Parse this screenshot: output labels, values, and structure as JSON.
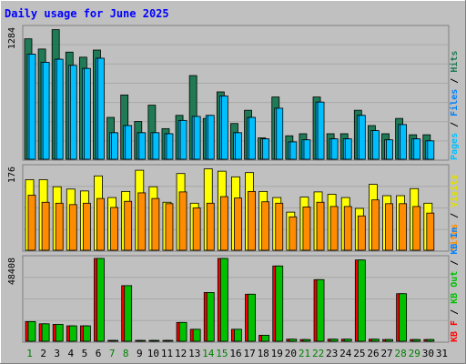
{
  "title": "Daily usage for June 2025",
  "colors": {
    "frame_bg": "#c0c0c0",
    "border_light": "#ffffff",
    "border_dark": "#808080",
    "hits": "#1f7a55",
    "files": "#00bfff",
    "pages": "#00bfff",
    "visits": "#ffff00",
    "sites": "#ff8c00",
    "kb_in": "#00c000",
    "kb_out": "#ff0000",
    "weekend_day": "#008000",
    "weekday": "#000000",
    "title_color": "#0000ff"
  },
  "right_labels": {
    "panel1": [
      {
        "text": "Pages",
        "color": "#00bfff"
      },
      {
        "text": " / ",
        "color": "#000000"
      },
      {
        "text": "Files",
        "color": "#0080ff"
      },
      {
        "text": " / ",
        "color": "#000000"
      },
      {
        "text": "Hits",
        "color": "#1f7a55"
      }
    ],
    "panel2": [
      {
        "text": "Sites",
        "color": "#ff8c00"
      },
      {
        "text": " / ",
        "color": "#000000"
      },
      {
        "text": "Visits",
        "color": "#e0e000"
      }
    ],
    "panel3": [
      {
        "text": "KB F",
        "color": "#ff0000"
      },
      {
        "text": " / ",
        "color": "#000000"
      },
      {
        "text": "KB Out",
        "color": "#00c000"
      },
      {
        "text": " / ",
        "color": "#000000"
      },
      {
        "text": "KB In",
        "color": "#0080ff"
      }
    ]
  },
  "chart_data": [
    {
      "type": "bar",
      "name": "hits-files-pages",
      "max_label": "1284",
      "ylim": [
        0,
        1284
      ],
      "categories": [
        "1",
        "2",
        "3",
        "4",
        "5",
        "6",
        "7",
        "8",
        "9",
        "10",
        "11",
        "12",
        "13",
        "14",
        "15",
        "16",
        "17",
        "18",
        "19",
        "20",
        "21",
        "22",
        "23",
        "24",
        "25",
        "26",
        "27",
        "28",
        "29",
        "30",
        "31"
      ],
      "series": [
        {
          "name": "Hits",
          "values": [
            1180,
            1080,
            1270,
            1050,
            1000,
            1070,
            410,
            630,
            370,
            530,
            300,
            430,
            820,
            400,
            660,
            350,
            480,
            210,
            610,
            230,
            250,
            610,
            250,
            250,
            480,
            330,
            250,
            400,
            240,
            240,
            null
          ]
        },
        {
          "name": "Files",
          "values": [
            1030,
            950,
            980,
            920,
            890,
            990,
            260,
            330,
            260,
            260,
            250,
            380,
            420,
            430,
            620,
            260,
            410,
            200,
            500,
            170,
            190,
            560,
            200,
            200,
            430,
            280,
            190,
            340,
            200,
            180,
            null
          ]
        },
        {
          "name": "Pages",
          "values": [
            1030,
            950,
            980,
            920,
            890,
            990,
            260,
            330,
            260,
            260,
            250,
            380,
            420,
            430,
            620,
            260,
            410,
            200,
            500,
            170,
            190,
            560,
            200,
            200,
            430,
            280,
            190,
            340,
            200,
            180,
            null
          ]
        }
      ]
    },
    {
      "type": "bar",
      "name": "visits-sites",
      "max_label": "176",
      "ylim": [
        0,
        176
      ],
      "categories": [
        "1",
        "2",
        "3",
        "4",
        "5",
        "6",
        "7",
        "8",
        "9",
        "10",
        "11",
        "12",
        "13",
        "14",
        "15",
        "16",
        "17",
        "18",
        "19",
        "20",
        "21",
        "22",
        "23",
        "24",
        "25",
        "26",
        "27",
        "28",
        "29",
        "30",
        "31"
      ],
      "series": [
        {
          "name": "Visits",
          "values": [
            150,
            150,
            135,
            130,
            126,
            158,
            112,
            125,
            170,
            135,
            102,
            163,
            100,
            173,
            168,
            156,
            165,
            125,
            112,
            81,
            113,
            124,
            119,
            112,
            89,
            140,
            116,
            116,
            131,
            100,
            null
          ]
        },
        {
          "name": "Sites",
          "values": [
            117,
            102,
            100,
            97,
            100,
            110,
            91,
            104,
            122,
            110,
            99,
            124,
            90,
            100,
            114,
            111,
            125,
            103,
            100,
            71,
            92,
            102,
            93,
            93,
            73,
            107,
            99,
            99,
            93,
            79,
            null
          ]
        }
      ]
    },
    {
      "type": "bar",
      "name": "kb-traffic",
      "max_label": "48408",
      "ylim": [
        0,
        48408
      ],
      "categories": [
        "1",
        "2",
        "3",
        "4",
        "5",
        "6",
        "7",
        "8",
        "9",
        "10",
        "11",
        "12",
        "13",
        "14",
        "15",
        "16",
        "17",
        "18",
        "19",
        "20",
        "21",
        "22",
        "23",
        "24",
        "25",
        "26",
        "27",
        "28",
        "29",
        "30",
        "31"
      ],
      "series": [
        {
          "name": "KB F",
          "values": [
            11500,
            10200,
            9900,
            9000,
            9000,
            49000,
            500,
            32500,
            500,
            500,
            500,
            11000,
            7000,
            28500,
            49000,
            7000,
            27500,
            3500,
            44000,
            1200,
            1000,
            36000,
            1200,
            1200,
            47500,
            1200,
            1000,
            27800,
            1000,
            1000,
            null
          ]
        },
        {
          "name": "KB Out",
          "values": [
            11500,
            10200,
            9900,
            9000,
            9000,
            49000,
            500,
            32500,
            500,
            500,
            500,
            11000,
            7000,
            28500,
            49000,
            7000,
            27500,
            3500,
            44000,
            1200,
            1000,
            36000,
            1200,
            1200,
            47500,
            1200,
            1000,
            27800,
            1000,
            1000,
            null
          ]
        },
        {
          "name": "KB In",
          "values": [
            0,
            0,
            0,
            0,
            0,
            0,
            0,
            0,
            0,
            0,
            0,
            0,
            0,
            0,
            0,
            0,
            0,
            0,
            0,
            0,
            0,
            0,
            0,
            0,
            0,
            0,
            0,
            0,
            0,
            0,
            null
          ]
        }
      ]
    }
  ],
  "day_labels": [
    {
      "text": "1",
      "weekend": true
    },
    {
      "text": "2",
      "weekend": false
    },
    {
      "text": "3",
      "weekend": false
    },
    {
      "text": "4",
      "weekend": false
    },
    {
      "text": "5",
      "weekend": false
    },
    {
      "text": "6",
      "weekend": false
    },
    {
      "text": "7",
      "weekend": true
    },
    {
      "text": "8",
      "weekend": true
    },
    {
      "text": "9",
      "weekend": false
    },
    {
      "text": "10",
      "weekend": false
    },
    {
      "text": "11",
      "weekend": false
    },
    {
      "text": "12",
      "weekend": false
    },
    {
      "text": "13",
      "weekend": false
    },
    {
      "text": "14",
      "weekend": true
    },
    {
      "text": "15",
      "weekend": true
    },
    {
      "text": "16",
      "weekend": false
    },
    {
      "text": "17",
      "weekend": false
    },
    {
      "text": "18",
      "weekend": false
    },
    {
      "text": "19",
      "weekend": false
    },
    {
      "text": "20",
      "weekend": false
    },
    {
      "text": "21",
      "weekend": true
    },
    {
      "text": "22",
      "weekend": true
    },
    {
      "text": "23",
      "weekend": false
    },
    {
      "text": "24",
      "weekend": false
    },
    {
      "text": "25",
      "weekend": false
    },
    {
      "text": "26",
      "weekend": false
    },
    {
      "text": "27",
      "weekend": false
    },
    {
      "text": "28",
      "weekend": true
    },
    {
      "text": "29",
      "weekend": true
    },
    {
      "text": "30",
      "weekend": false
    },
    {
      "text": "31",
      "weekend": false
    }
  ]
}
